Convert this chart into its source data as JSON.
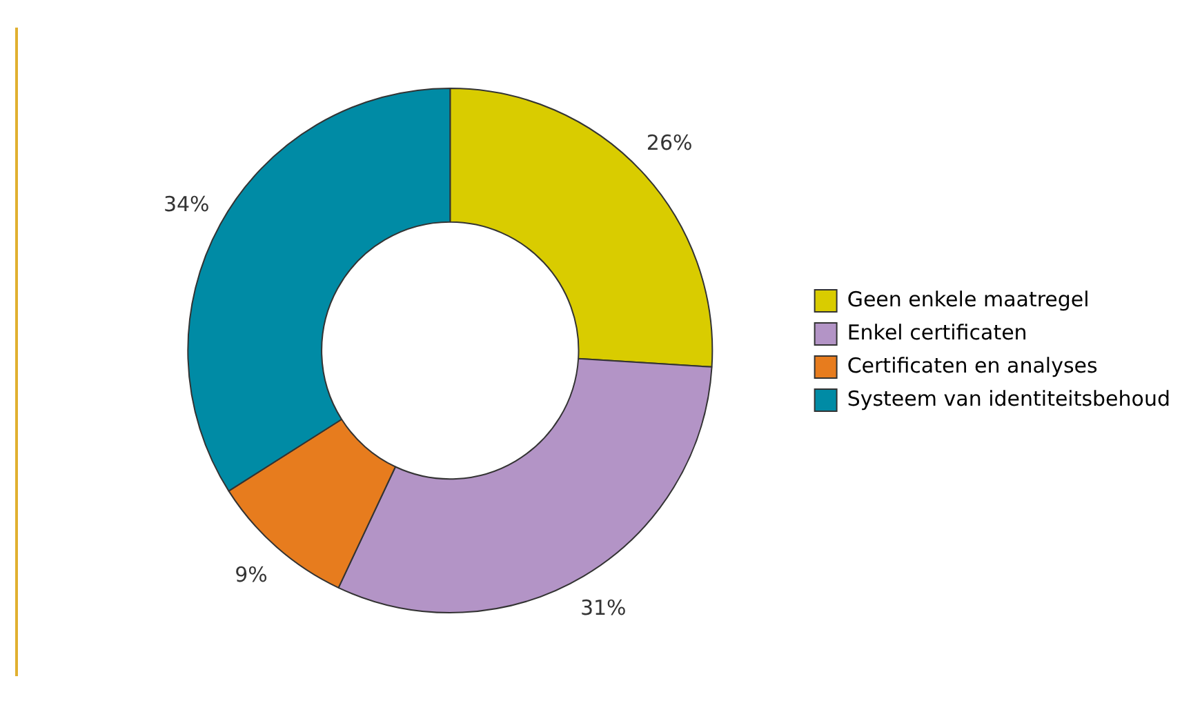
{
  "chart_data": {
    "type": "donut",
    "categories": [
      "Geen enkele maatregel",
      "Enkel certificaten",
      "Certificaten en analyses",
      "Systeem van identiteitsbehoud"
    ],
    "values": [
      26,
      31,
      9,
      34
    ],
    "value_labels": [
      "26%",
      "31%",
      "9%",
      "34%"
    ],
    "colors": [
      "#d9cc00",
      "#b394c6",
      "#e77c1e",
      "#008ba5"
    ],
    "legend": "right"
  }
}
